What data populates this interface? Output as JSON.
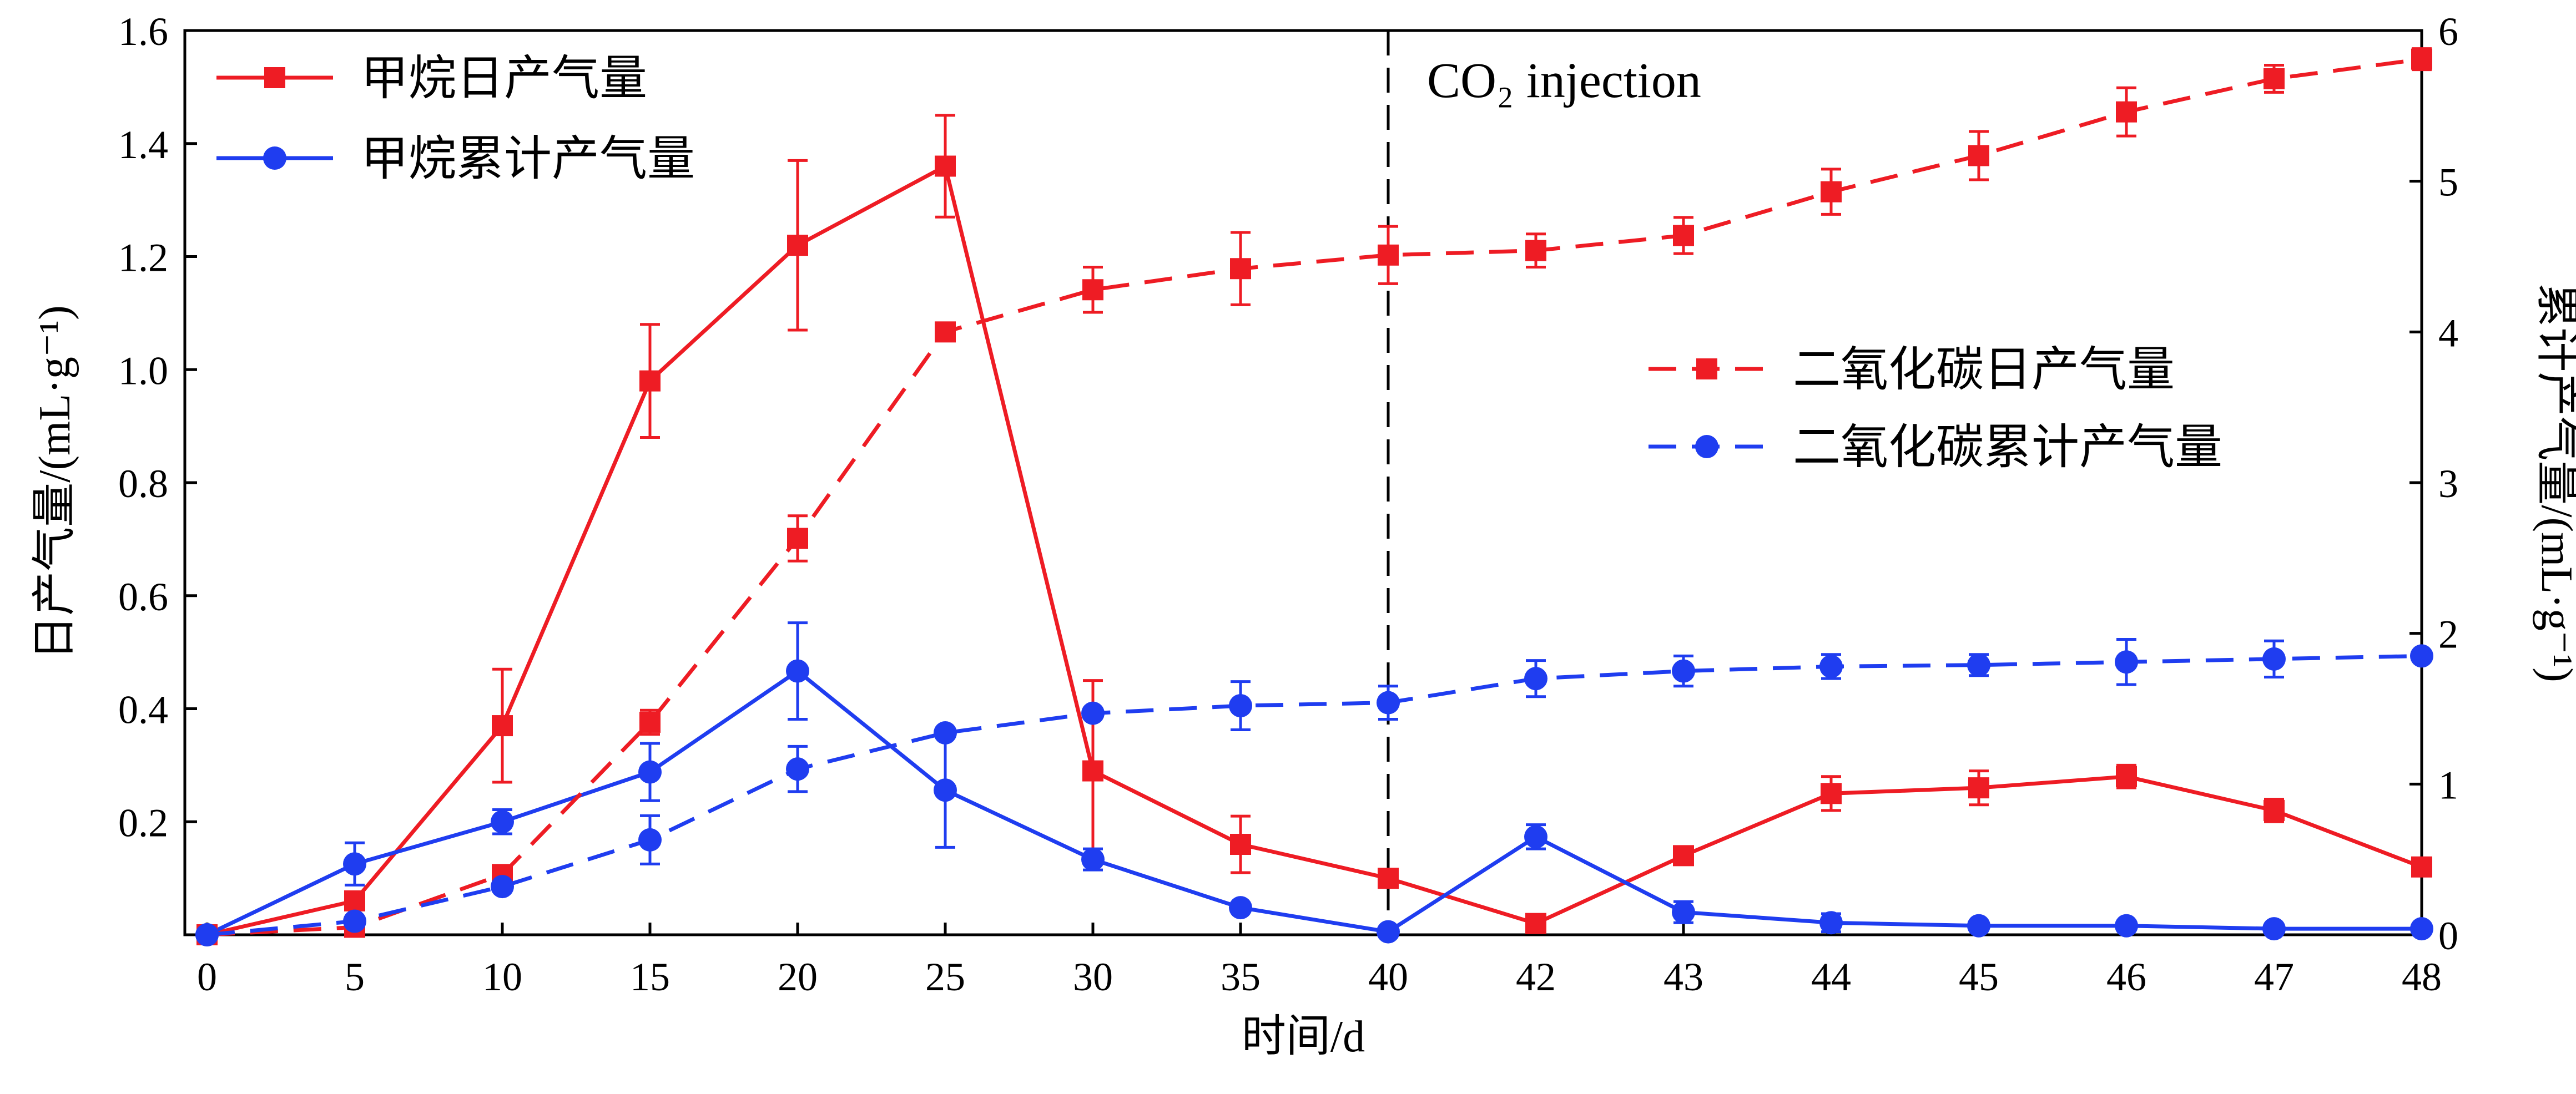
{
  "chart_data": {
    "type": "line",
    "xlabel": "时间/d",
    "ylabel_left": "日产气量/(mL·g⁻¹)",
    "ylabel_right": "累计产气量/(mL·g⁻¹)",
    "x_ticks": [
      "0",
      "5",
      "10",
      "15",
      "20",
      "25",
      "30",
      "35",
      "40",
      "42",
      "43",
      "44",
      "45",
      "46",
      "47",
      "48"
    ],
    "y_left_ticks": [
      "0.2",
      "0.4",
      "0.6",
      "0.8",
      "1.0",
      "1.2",
      "1.4",
      "1.6"
    ],
    "y_right_ticks": [
      "0",
      "1",
      "2",
      "3",
      "4",
      "5",
      "6"
    ],
    "ylim_left": [
      0,
      1.6
    ],
    "ylim_right": [
      0,
      6
    ],
    "grid": false,
    "annotation": {
      "text": "CO₂ injection",
      "at_x": "40"
    },
    "legend_top_left": [
      "甲烷日产气量",
      "甲烷累计产气量"
    ],
    "legend_right": [
      "二氧化碳日产气量",
      "二氧化碳累计产气量"
    ],
    "series": [
      {
        "name": "甲烷日产气量",
        "axis": "left",
        "style": "solid",
        "marker": "square",
        "color": "#ee1c24",
        "x": [
          "0",
          "5",
          "10",
          "15",
          "20",
          "25",
          "30",
          "35",
          "40",
          "42",
          "43",
          "44",
          "45",
          "46",
          "47",
          "48"
        ],
        "values": [
          0.0,
          0.06,
          0.37,
          0.98,
          1.22,
          1.36,
          0.29,
          0.16,
          0.1,
          0.02,
          0.14,
          0.25,
          0.26,
          0.28,
          0.22,
          0.12
        ],
        "errors": [
          0,
          0.01,
          0.1,
          0.1,
          0.15,
          0.09,
          0.16,
          0.05,
          0.01,
          0.01,
          0.01,
          0.03,
          0.03,
          0.02,
          0.02,
          0.01
        ]
      },
      {
        "name": "甲烷累计产气量",
        "axis": "right",
        "style": "solid",
        "marker": "circle",
        "color": "#1f3df0",
        "x": [
          "0",
          "5",
          "10",
          "15",
          "20",
          "25",
          "30",
          "35",
          "40",
          "42",
          "43",
          "44",
          "45",
          "46",
          "47",
          "48"
        ],
        "values": [
          0.0,
          0.47,
          0.75,
          1.08,
          1.75,
          0.96,
          0.5,
          0.18,
          0.02,
          0.65,
          0.15,
          0.08,
          0.06,
          0.06,
          0.04,
          0.04
        ],
        "errors": [
          0,
          0.14,
          0.08,
          0.19,
          0.32,
          0.38,
          0.07,
          0.01,
          0.01,
          0.08,
          0.07,
          0.06,
          0.03,
          0.03,
          0.02,
          0.02
        ]
      },
      {
        "name": "二氧化碳日产气量",
        "axis": "right",
        "style": "dashed",
        "marker": "square",
        "color": "#ee1c24",
        "x": [
          "0",
          "5",
          "10",
          "15",
          "20",
          "25",
          "30",
          "35",
          "40",
          "42",
          "43",
          "44",
          "45",
          "46",
          "47",
          "48"
        ],
        "values": [
          0.0,
          0.05,
          0.4,
          1.41,
          2.63,
          4.0,
          4.28,
          4.42,
          4.51,
          4.54,
          4.64,
          4.93,
          5.17,
          5.46,
          5.68,
          5.81
        ],
        "errors": [
          0,
          0.01,
          0.02,
          0.08,
          0.15,
          0.01,
          0.15,
          0.24,
          0.19,
          0.11,
          0.12,
          0.15,
          0.16,
          0.16,
          0.09,
          0.07
        ]
      },
      {
        "name": "二氧化碳累计产气量",
        "axis": "right",
        "style": "dashed",
        "marker": "circle",
        "color": "#1f3df0",
        "x": [
          "0",
          "5",
          "10",
          "15",
          "20",
          "25",
          "30",
          "35",
          "40",
          "42",
          "43",
          "44",
          "45",
          "46",
          "47",
          "48"
        ],
        "values": [
          0.0,
          0.09,
          0.32,
          0.63,
          1.1,
          1.34,
          1.47,
          1.52,
          1.54,
          1.7,
          1.75,
          1.78,
          1.79,
          1.81,
          1.83,
          1.85
        ],
        "errors": [
          0,
          0.01,
          0.03,
          0.16,
          0.15,
          0.01,
          0.03,
          0.16,
          0.11,
          0.12,
          0.1,
          0.08,
          0.07,
          0.15,
          0.12,
          0.03
        ]
      }
    ]
  }
}
